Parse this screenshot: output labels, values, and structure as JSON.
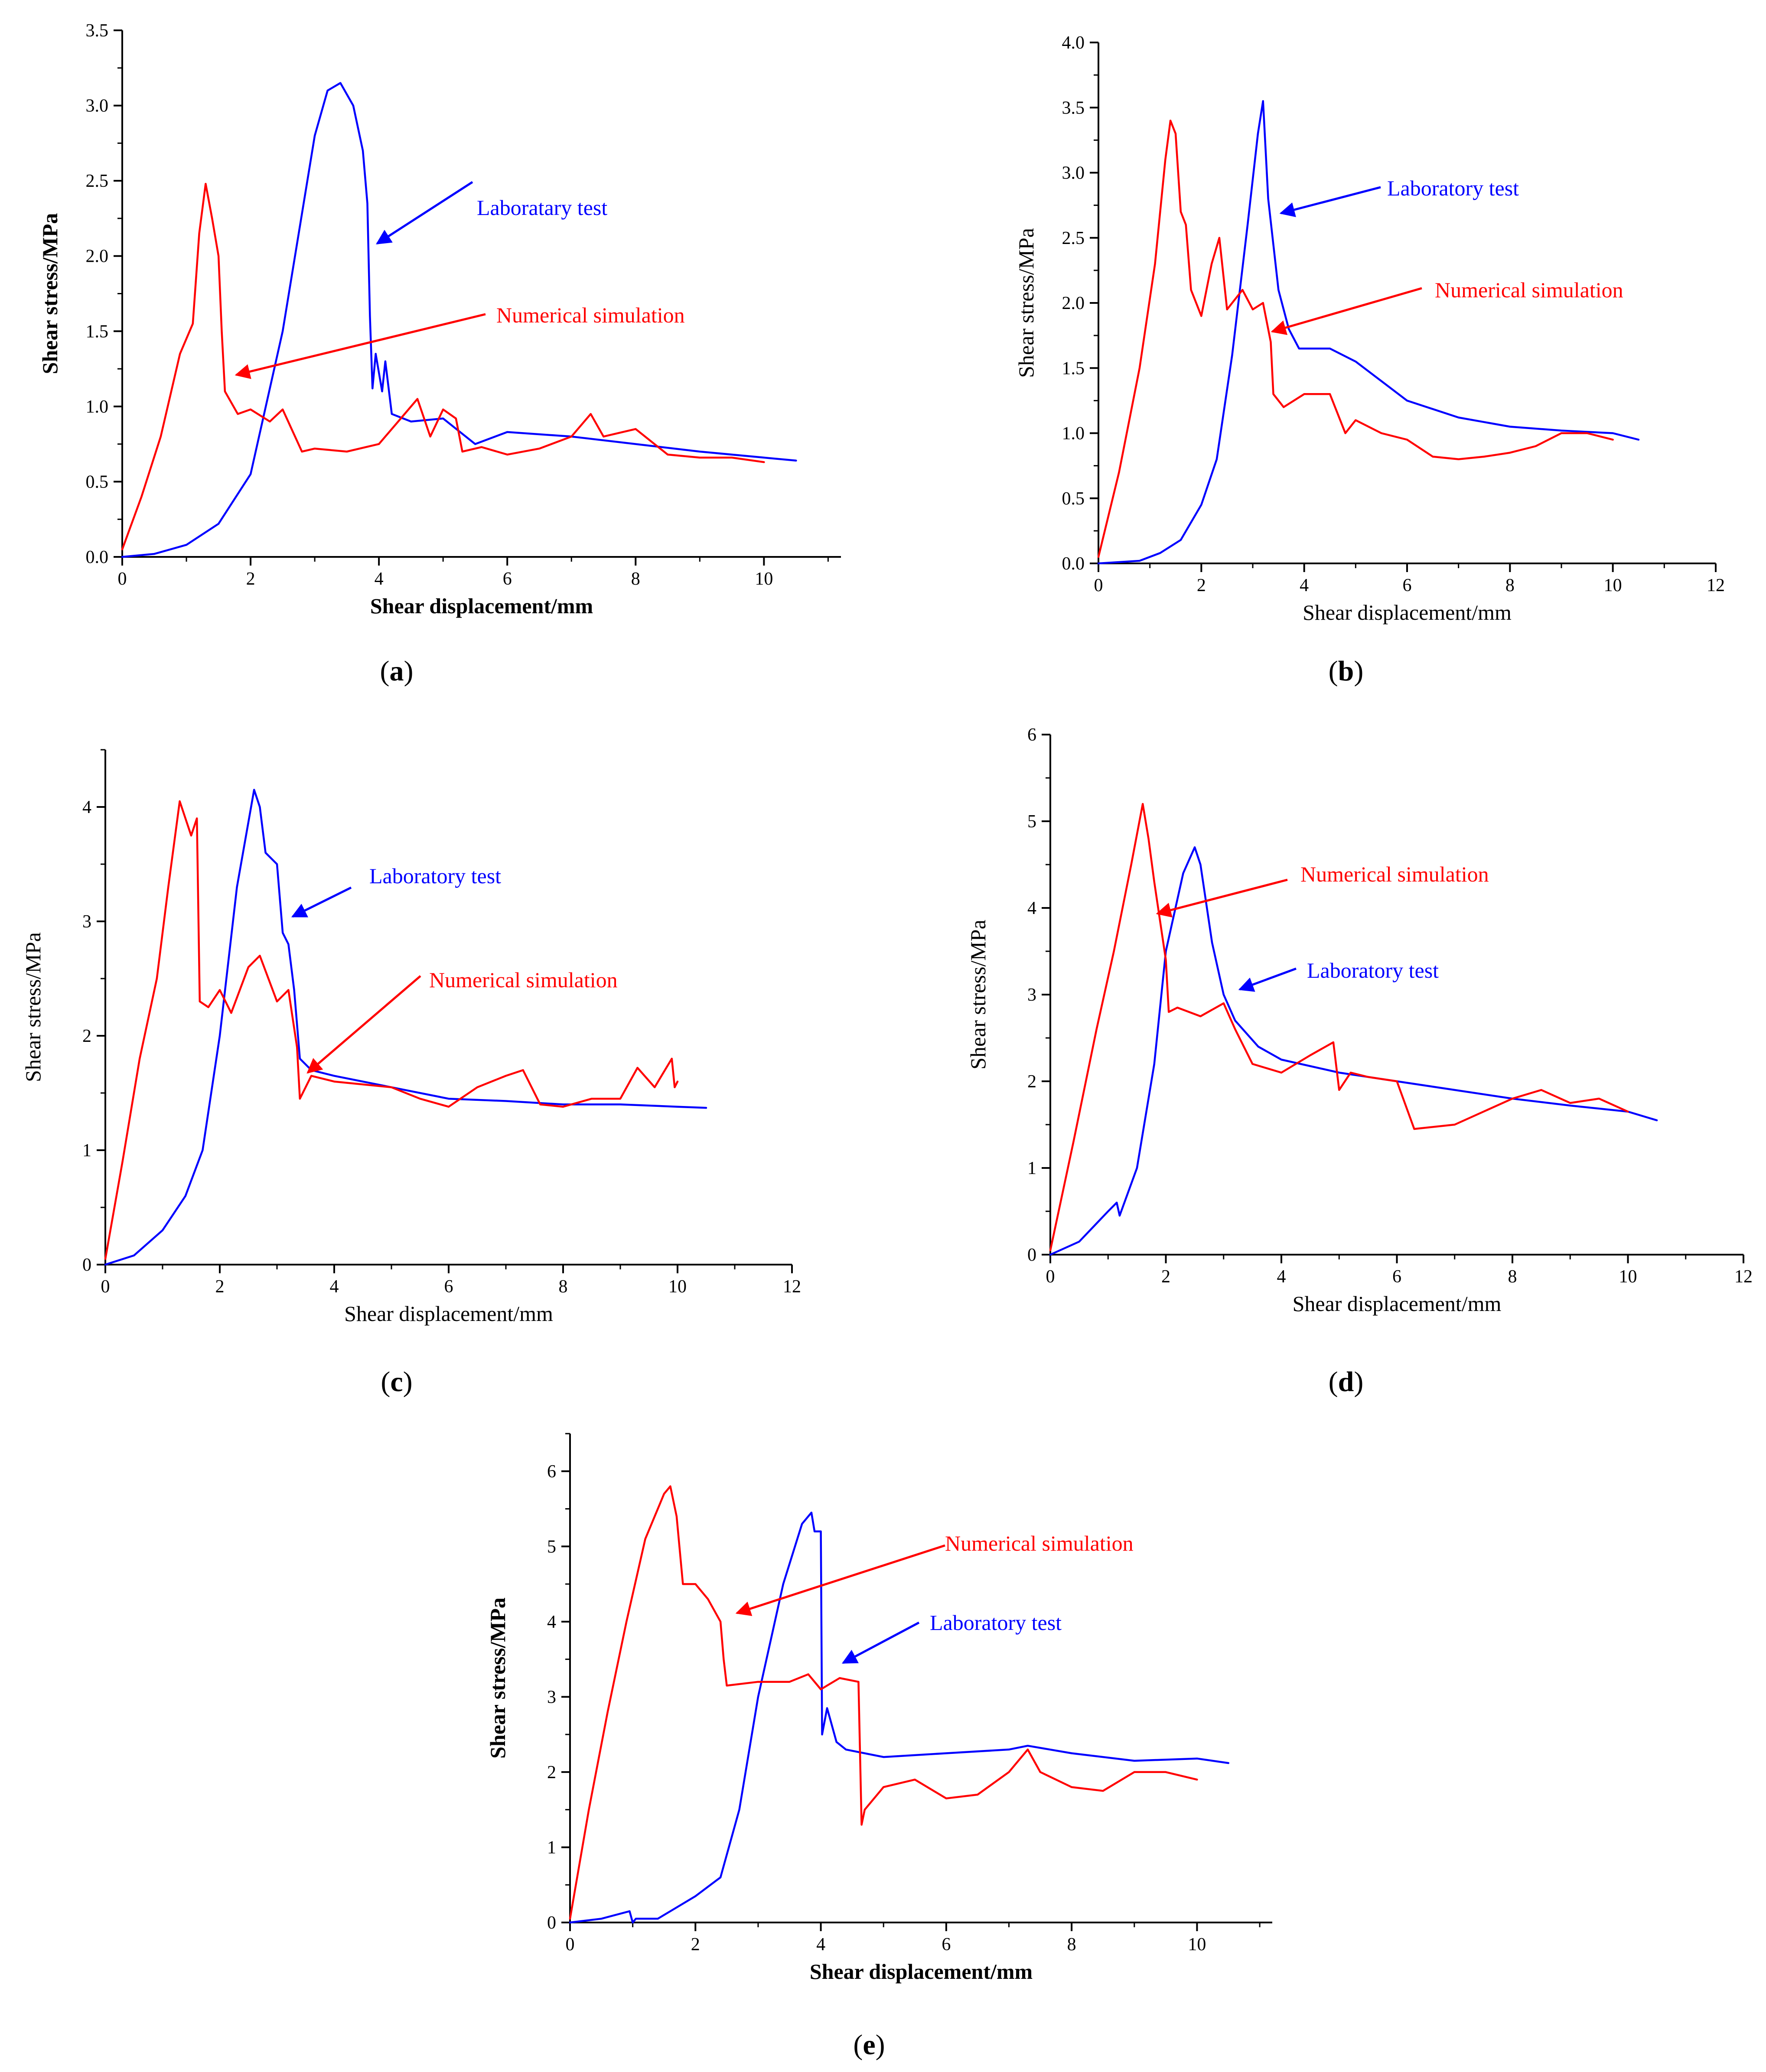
{
  "colors": {
    "lab": "#0000ff",
    "sim": "#ff0000",
    "axis": "#000000"
  },
  "chart_data": [
    {
      "id": "a",
      "type": "line",
      "label": "a",
      "xlabel": "Shear displacement/mm",
      "ylabel": "Shear stress/MPa",
      "xlim": [
        0,
        11.2
      ],
      "ylim": [
        0,
        3.5
      ],
      "xticks": [
        0,
        2,
        4,
        6,
        8,
        10
      ],
      "yticks": [
        0.0,
        0.5,
        1.0,
        1.5,
        2.0,
        2.5,
        3.0,
        3.5
      ],
      "ytick_format": 1,
      "bold_labels": true,
      "annotations": [
        {
          "series": "lab",
          "text": "Laboratary test"
        },
        {
          "series": "sim",
          "text": "Numerical simulation"
        }
      ],
      "series": [
        {
          "name": "Laboratary test",
          "key": "lab",
          "x": [
            0,
            0.5,
            1.0,
            1.5,
            2.0,
            2.5,
            3.0,
            3.2,
            3.4,
            3.6,
            3.75,
            3.82,
            3.86,
            3.9,
            3.95,
            4.05,
            4.1,
            4.2,
            4.5,
            5.0,
            5.5,
            6.0,
            7.0,
            8.0,
            9.0,
            10.0,
            10.5
          ],
          "y": [
            0,
            0.02,
            0.08,
            0.22,
            0.55,
            1.5,
            2.8,
            3.1,
            3.15,
            3.0,
            2.7,
            2.35,
            1.6,
            1.12,
            1.35,
            1.1,
            1.3,
            0.95,
            0.9,
            0.92,
            0.75,
            0.83,
            0.8,
            0.75,
            0.7,
            0.66,
            0.64
          ]
        },
        {
          "name": "Numerical simulation",
          "key": "sim",
          "x": [
            0,
            0.3,
            0.6,
            0.9,
            1.1,
            1.2,
            1.3,
            1.4,
            1.5,
            1.55,
            1.6,
            1.8,
            2.0,
            2.3,
            2.5,
            2.8,
            3.0,
            3.5,
            4.0,
            4.3,
            4.6,
            4.8,
            5.0,
            5.2,
            5.3,
            5.6,
            6.0,
            6.5,
            7.0,
            7.3,
            7.5,
            8.0,
            8.5,
            9.0,
            9.5,
            10.0
          ],
          "y": [
            0.05,
            0.4,
            0.8,
            1.35,
            1.55,
            2.15,
            2.48,
            2.25,
            2.0,
            1.5,
            1.1,
            0.95,
            0.98,
            0.9,
            0.98,
            0.7,
            0.72,
            0.7,
            0.75,
            0.9,
            1.05,
            0.8,
            0.98,
            0.92,
            0.7,
            0.73,
            0.68,
            0.72,
            0.8,
            0.95,
            0.8,
            0.85,
            0.68,
            0.66,
            0.66,
            0.63
          ]
        }
      ]
    },
    {
      "id": "b",
      "type": "line",
      "label": "b",
      "xlabel": "Shear displacement/mm",
      "ylabel": "Shear stress/MPa",
      "xlim": [
        0,
        12
      ],
      "ylim": [
        0,
        4.0
      ],
      "xticks": [
        0,
        2,
        4,
        6,
        8,
        10,
        12
      ],
      "yticks": [
        0.0,
        0.5,
        1.0,
        1.5,
        2.0,
        2.5,
        3.0,
        3.5,
        4.0
      ],
      "ytick_format": 1,
      "bold_labels": false,
      "annotations": [
        {
          "series": "lab",
          "text": "Laboratory test"
        },
        {
          "series": "sim",
          "text": "Numerical simulation"
        }
      ],
      "series": [
        {
          "name": "Laboratory test",
          "key": "lab",
          "x": [
            0,
            0.8,
            1.2,
            1.6,
            2.0,
            2.3,
            2.6,
            2.9,
            3.1,
            3.2,
            3.3,
            3.5,
            3.6,
            3.7,
            3.9,
            4.5,
            5.0,
            5.5,
            6.0,
            7.0,
            8.0,
            9.0,
            10.0,
            10.5
          ],
          "y": [
            0,
            0.02,
            0.08,
            0.18,
            0.45,
            0.8,
            1.6,
            2.6,
            3.3,
            3.55,
            2.8,
            2.1,
            1.95,
            1.8,
            1.65,
            1.65,
            1.55,
            1.4,
            1.25,
            1.12,
            1.05,
            1.02,
            1.0,
            0.95
          ]
        },
        {
          "name": "Numerical simulation",
          "key": "sim",
          "x": [
            0,
            0.4,
            0.8,
            1.1,
            1.3,
            1.4,
            1.5,
            1.6,
            1.7,
            1.8,
            2.0,
            2.2,
            2.35,
            2.5,
            2.8,
            3.0,
            3.2,
            3.35,
            3.4,
            3.6,
            4.0,
            4.5,
            4.8,
            5.0,
            5.5,
            6.0,
            6.5,
            7.0,
            7.5,
            8.0,
            8.5,
            9.0,
            9.5,
            10.0
          ],
          "y": [
            0.05,
            0.7,
            1.5,
            2.3,
            3.1,
            3.4,
            3.3,
            2.7,
            2.6,
            2.1,
            1.9,
            2.3,
            2.5,
            1.95,
            2.1,
            1.95,
            2.0,
            1.7,
            1.3,
            1.2,
            1.3,
            1.3,
            1.0,
            1.1,
            1.0,
            0.95,
            0.82,
            0.8,
            0.82,
            0.85,
            0.9,
            1.0,
            1.0,
            0.95
          ]
        }
      ]
    },
    {
      "id": "c",
      "type": "line",
      "label": "c",
      "xlabel": "Shear displacement/mm",
      "ylabel": "Shear stress/MPa",
      "xlim": [
        0,
        12
      ],
      "ylim": [
        0,
        4.5
      ],
      "xticks": [
        0,
        2,
        4,
        6,
        8,
        10,
        12
      ],
      "yticks": [
        0,
        1,
        2,
        3,
        4
      ],
      "ytick_format": 0,
      "bold_labels": false,
      "annotations": [
        {
          "series": "lab",
          "text": "Laboratory test"
        },
        {
          "series": "sim",
          "text": "Numerical simulation"
        }
      ],
      "series": [
        {
          "name": "Laboratory test",
          "key": "lab",
          "x": [
            0,
            0.5,
            1.0,
            1.4,
            1.7,
            2.0,
            2.3,
            2.6,
            2.7,
            2.8,
            3.0,
            3.1,
            3.2,
            3.3,
            3.4,
            3.6,
            4.0,
            5.0,
            6.0,
            7.0,
            8.0,
            9.0,
            10.0,
            10.5
          ],
          "y": [
            0,
            0.08,
            0.3,
            0.6,
            1.0,
            2.0,
            3.3,
            4.15,
            4.0,
            3.6,
            3.5,
            2.9,
            2.8,
            2.4,
            1.8,
            1.7,
            1.65,
            1.55,
            1.45,
            1.43,
            1.4,
            1.4,
            1.38,
            1.37
          ]
        },
        {
          "name": "Numerical simulation",
          "key": "sim",
          "x": [
            0,
            0.3,
            0.6,
            0.9,
            1.1,
            1.3,
            1.4,
            1.5,
            1.6,
            1.65,
            1.8,
            2.0,
            2.2,
            2.5,
            2.7,
            3.0,
            3.2,
            3.35,
            3.4,
            3.6,
            4.0,
            5.0,
            5.5,
            6.0,
            6.5,
            7.0,
            7.3,
            7.6,
            8.0,
            8.5,
            9.0,
            9.3,
            9.6,
            9.9,
            9.95,
            10.0
          ],
          "y": [
            0.05,
            0.9,
            1.8,
            2.5,
            3.3,
            4.05,
            3.9,
            3.75,
            3.9,
            2.3,
            2.25,
            2.4,
            2.2,
            2.6,
            2.7,
            2.3,
            2.4,
            1.9,
            1.45,
            1.65,
            1.6,
            1.55,
            1.45,
            1.38,
            1.55,
            1.65,
            1.7,
            1.4,
            1.38,
            1.45,
            1.45,
            1.72,
            1.55,
            1.8,
            1.55,
            1.6
          ]
        }
      ]
    },
    {
      "id": "d",
      "type": "line",
      "label": "d",
      "xlabel": "Shear displacement/mm",
      "ylabel": "Shear stress/MPa",
      "xlim": [
        0,
        12
      ],
      "ylim": [
        0,
        6
      ],
      "xticks": [
        0,
        2,
        4,
        6,
        8,
        10,
        12
      ],
      "yticks": [
        0,
        1,
        2,
        3,
        4,
        5,
        6
      ],
      "ytick_format": 0,
      "bold_labels": false,
      "annotations": [
        {
          "series": "sim",
          "text": "Numerical simulation"
        },
        {
          "series": "lab",
          "text": "Laboratory test"
        }
      ],
      "series": [
        {
          "name": "Laboratory test",
          "key": "lab",
          "x": [
            0,
            0.5,
            1.0,
            1.15,
            1.2,
            1.5,
            1.8,
            2.0,
            2.3,
            2.5,
            2.6,
            2.8,
            3.0,
            3.2,
            3.6,
            4.0,
            5.0,
            6.0,
            7.0,
            8.0,
            9.0,
            10.0,
            10.5
          ],
          "y": [
            0,
            0.15,
            0.5,
            0.6,
            0.45,
            1.0,
            2.2,
            3.5,
            4.4,
            4.7,
            4.5,
            3.6,
            3.0,
            2.7,
            2.4,
            2.25,
            2.1,
            2.0,
            1.9,
            1.8,
            1.72,
            1.65,
            1.55
          ]
        },
        {
          "name": "Numerical simulation",
          "key": "sim",
          "x": [
            0,
            0.4,
            0.8,
            1.1,
            1.4,
            1.6,
            1.7,
            1.8,
            2.0,
            2.05,
            2.2,
            2.6,
            3.0,
            3.2,
            3.5,
            4.0,
            4.5,
            4.9,
            5.0,
            5.2,
            5.5,
            6.0,
            6.3,
            7.0,
            8.0,
            8.5,
            9.0,
            9.5,
            10.0
          ],
          "y": [
            0.05,
            1.3,
            2.6,
            3.5,
            4.5,
            5.2,
            4.8,
            4.3,
            3.4,
            2.8,
            2.85,
            2.75,
            2.9,
            2.6,
            2.2,
            2.1,
            2.3,
            2.45,
            1.9,
            2.1,
            2.05,
            2.0,
            1.45,
            1.5,
            1.8,
            1.9,
            1.75,
            1.8,
            1.65
          ]
        }
      ]
    },
    {
      "id": "e",
      "type": "line",
      "label": "e",
      "xlabel": "Shear displacement/mm",
      "ylabel": "Shear stress/MPa",
      "xlim": [
        0,
        11.2
      ],
      "ylim": [
        0,
        6.5
      ],
      "xticks": [
        0,
        2,
        4,
        6,
        8,
        10
      ],
      "yticks": [
        0,
        1,
        2,
        3,
        4,
        5,
        6
      ],
      "ytick_format": 0,
      "bold_labels": true,
      "annotations": [
        {
          "series": "sim",
          "text": "Numerical simulation"
        },
        {
          "series": "lab",
          "text": "Laboratory test"
        }
      ],
      "series": [
        {
          "name": "Laboratory test",
          "key": "lab",
          "x": [
            0,
            0.5,
            0.95,
            1.0,
            1.05,
            1.4,
            1.6,
            2.0,
            2.4,
            2.7,
            3.0,
            3.4,
            3.7,
            3.85,
            3.9,
            4.0,
            4.02,
            4.1,
            4.15,
            4.25,
            4.4,
            5.0,
            6.0,
            7.0,
            7.3,
            8.0,
            9.0,
            10.0,
            10.5
          ],
          "y": [
            0,
            0.05,
            0.15,
            0.0,
            0.05,
            0.05,
            0.15,
            0.35,
            0.6,
            1.5,
            3.0,
            4.5,
            5.3,
            5.45,
            5.2,
            5.2,
            2.5,
            2.85,
            2.7,
            2.4,
            2.3,
            2.2,
            2.25,
            2.3,
            2.35,
            2.25,
            2.15,
            2.18,
            2.12
          ]
        },
        {
          "name": "Numerical simulation",
          "key": "sim",
          "x": [
            0,
            0.3,
            0.6,
            0.9,
            1.2,
            1.5,
            1.6,
            1.7,
            1.8,
            2.0,
            2.2,
            2.4,
            2.45,
            2.5,
            3.0,
            3.5,
            3.8,
            4.0,
            4.3,
            4.6,
            4.65,
            4.7,
            5.0,
            5.5,
            6.0,
            6.5,
            7.0,
            7.3,
            7.5,
            8.0,
            8.5,
            9.0,
            9.5,
            10.0
          ],
          "y": [
            0.05,
            1.5,
            2.8,
            4.0,
            5.1,
            5.7,
            5.8,
            5.4,
            4.5,
            4.5,
            4.3,
            4.0,
            3.5,
            3.15,
            3.2,
            3.2,
            3.3,
            3.1,
            3.25,
            3.2,
            1.3,
            1.5,
            1.8,
            1.9,
            1.65,
            1.7,
            2.0,
            2.3,
            2.0,
            1.8,
            1.75,
            2.0,
            2.0,
            1.9
          ]
        }
      ]
    }
  ]
}
